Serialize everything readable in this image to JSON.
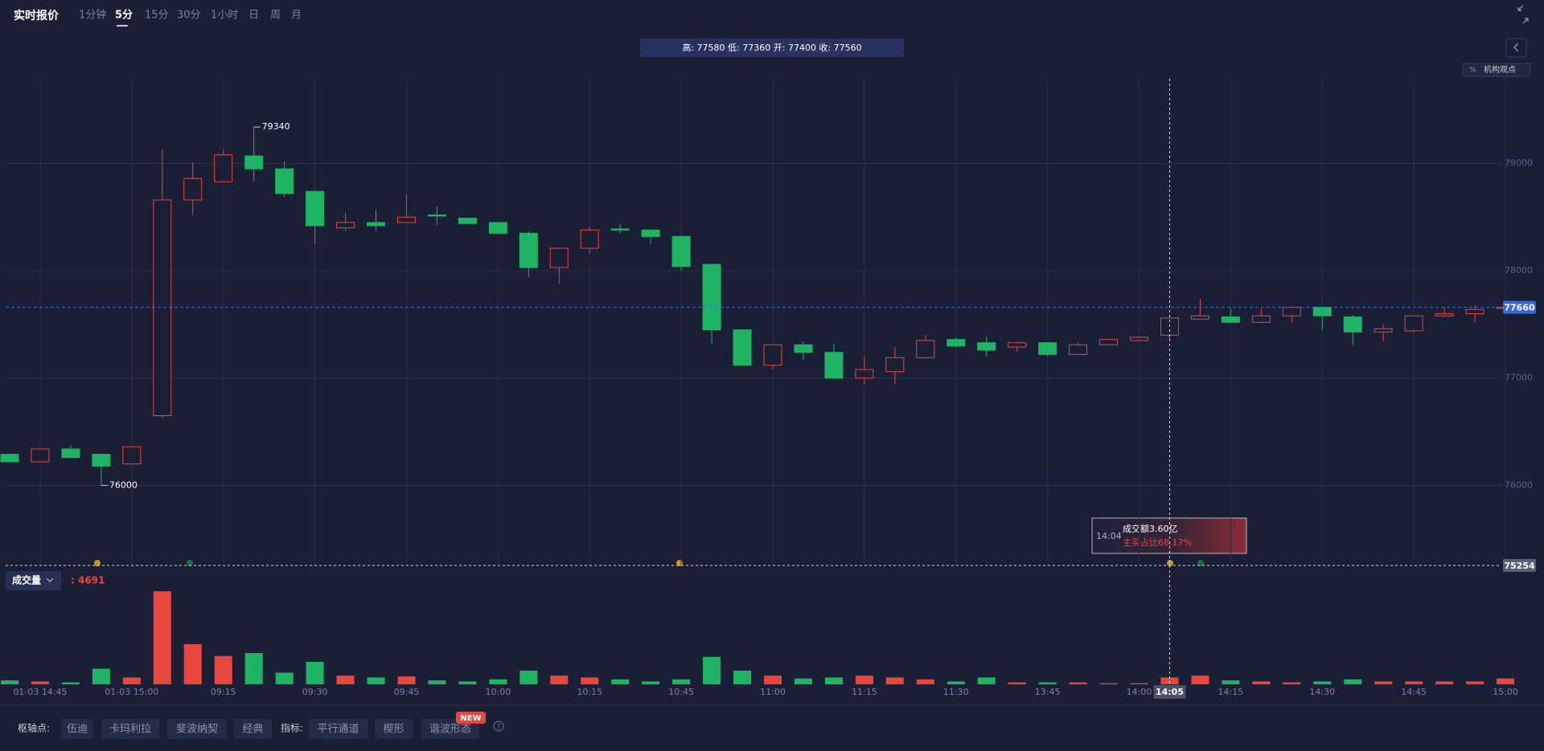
{
  "toolbar": {
    "title": "实时报价",
    "tabs": [
      "1分钟",
      "5分",
      "15分",
      "30分",
      "1小时",
      "日",
      "周",
      "月"
    ],
    "active_tab": "5分"
  },
  "ohlc_bar": {
    "text": "高: 77580 低: 77360 开: 77400 收: 77560"
  },
  "side": {
    "badge_label": "机构观点"
  },
  "tooltip": {
    "time": "14:04",
    "line1": "成交额3.60亿",
    "line2": "主买占比68.17%"
  },
  "bottom_bar": {
    "pivot_label": "枢轴点:",
    "pivots": [
      "伍迪",
      "卡玛利拉",
      "斐波纳契",
      "经典"
    ],
    "indicator_label": "指标:",
    "indicators": [
      "平行通道",
      "楔形",
      "谐波形态"
    ],
    "badge": "NEW"
  },
  "chart_data": {
    "type": "candlestick",
    "categories": [
      null,
      "01-03 14:45",
      null,
      null,
      "01-03 15:00",
      null,
      null,
      "09:15",
      null,
      null,
      "09:30",
      null,
      null,
      "09:45",
      null,
      null,
      "10:00",
      null,
      null,
      "10:15",
      null,
      null,
      "10:45",
      null,
      null,
      "11:00",
      null,
      null,
      "11:15",
      null,
      null,
      "11:30",
      null,
      null,
      "13:45",
      null,
      null,
      "14:00",
      "14:05",
      null,
      "14:15",
      null,
      null,
      "14:30",
      null,
      null,
      "14:45",
      null,
      null,
      "15:00"
    ],
    "open": [
      76290,
      76220,
      76340,
      76290,
      76200,
      76650,
      78660,
      78830,
      79070,
      78950,
      78740,
      78400,
      78450,
      78450,
      78520,
      78490,
      78450,
      78350,
      78030,
      78210,
      78390,
      78380,
      78320,
      78060,
      77450,
      77120,
      77310,
      77240,
      77000,
      77060,
      77190,
      77360,
      77330,
      77290,
      77330,
      77220,
      77310,
      77350,
      77400,
      77550,
      77570,
      77520,
      77580,
      77660,
      77570,
      77430,
      77440,
      77580,
      77600,
      77650
    ],
    "high": [
      76290,
      76340,
      76380,
      76290,
      76360,
      79130,
      79010,
      79130,
      79340,
      79020,
      78740,
      78540,
      78570,
      78710,
      78600,
      78490,
      78450,
      78370,
      78210,
      78410,
      78440,
      78380,
      78330,
      78060,
      77450,
      77310,
      77340,
      77320,
      77200,
      77290,
      77400,
      77380,
      77390,
      77340,
      77330,
      77330,
      77360,
      77390,
      77580,
      77740,
      77650,
      77650,
      77670,
      77660,
      77590,
      77500,
      77580,
      77660,
      77680,
      77660
    ],
    "low": [
      76220,
      76220,
      76250,
      76000,
      76200,
      76630,
      78520,
      78830,
      78830,
      78690,
      78250,
      78370,
      78370,
      78450,
      78430,
      78440,
      78350,
      77940,
      77880,
      78160,
      78350,
      78250,
      78000,
      77320,
      77120,
      77080,
      77170,
      77000,
      76940,
      76940,
      77180,
      77290,
      77200,
      77250,
      77200,
      77220,
      77310,
      77350,
      77360,
      77550,
      77520,
      77510,
      77520,
      77450,
      77310,
      77340,
      77430,
      77570,
      77520,
      77650
    ],
    "close": [
      76220,
      76340,
      76260,
      76180,
      76360,
      78660,
      78860,
      79080,
      78950,
      78720,
      78420,
      78450,
      78420,
      78500,
      78510,
      78440,
      78350,
      78030,
      78210,
      78380,
      78380,
      78320,
      78040,
      77450,
      77120,
      77310,
      77240,
      77000,
      77080,
      77190,
      77350,
      77300,
      77260,
      77330,
      77220,
      77310,
      77360,
      77380,
      77560,
      77580,
      77520,
      77580,
      77660,
      77580,
      77430,
      77460,
      77580,
      77600,
      77640,
      77660
    ],
    "volume": [
      2700,
      2000,
      1300,
      10700,
      4700,
      63700,
      27500,
      19400,
      21400,
      8000,
      15400,
      6000,
      4700,
      5400,
      2700,
      2000,
      3400,
      9400,
      6000,
      4700,
      3400,
      2000,
      3400,
      18800,
      9400,
      6000,
      4000,
      4700,
      6000,
      4700,
      3400,
      2000,
      4700,
      1300,
      1300,
      1300,
      700,
      700,
      4691,
      6000,
      2700,
      2000,
      1300,
      2000,
      3400,
      2000,
      2000,
      2000,
      2000,
      4000
    ],
    "up_color": "#e8473d",
    "down_color": "#1fb464",
    "ylim": [
      75254,
      79790
    ],
    "yticks": [
      76000,
      77000,
      78000,
      79000
    ],
    "volume_ylim": [
      0,
      66000
    ],
    "grid": true,
    "last_price": 77660,
    "last_price_color": "#3b68d4",
    "crosshair": {
      "at": "14:05",
      "price": 75254
    },
    "annotations": [
      {
        "value": 79340
      },
      {
        "value": 76000
      }
    ],
    "volume_label": "成交量",
    "volume_readout": {
      "value": 4691,
      "label": ": 4691"
    }
  }
}
